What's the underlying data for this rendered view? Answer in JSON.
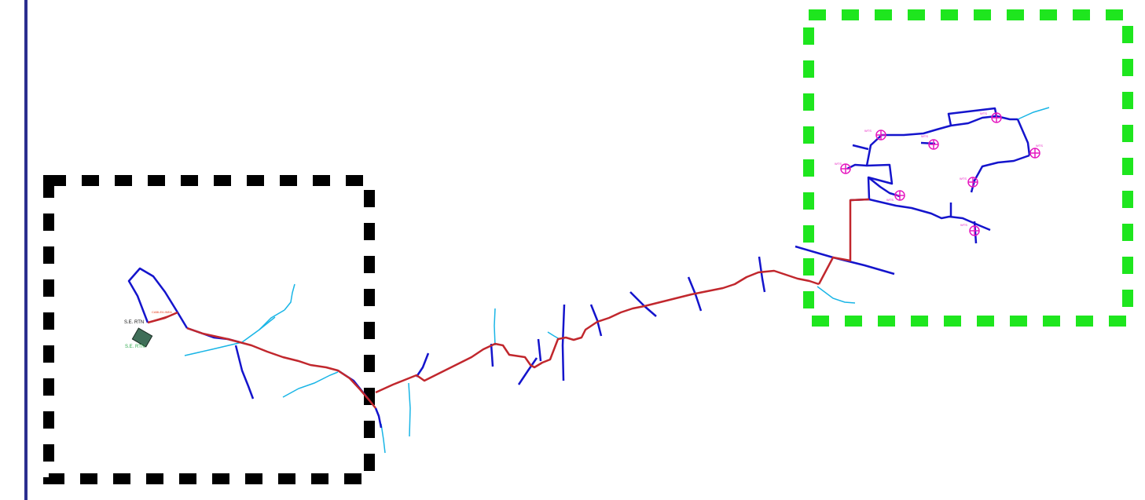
{
  "map": {
    "substation": {
      "label_top": "S.E. RTN",
      "label_bottom": "S.E. RTN",
      "cable_label": "CABLE/LINEA"
    },
    "wells": {
      "label": "WTS"
    },
    "colors": {
      "frame_bar": "#2b2f8f",
      "main_line": "#c1272d",
      "distribution_line": "#1414cc",
      "water_line": "#19b5e6",
      "well_marker": "#e619c0",
      "black_box": "#000000",
      "green_box": "#1ee61e",
      "substation_fill": "#3f6e58",
      "label_green": "#2aa84a",
      "label_red": "#e53a1a"
    }
  }
}
